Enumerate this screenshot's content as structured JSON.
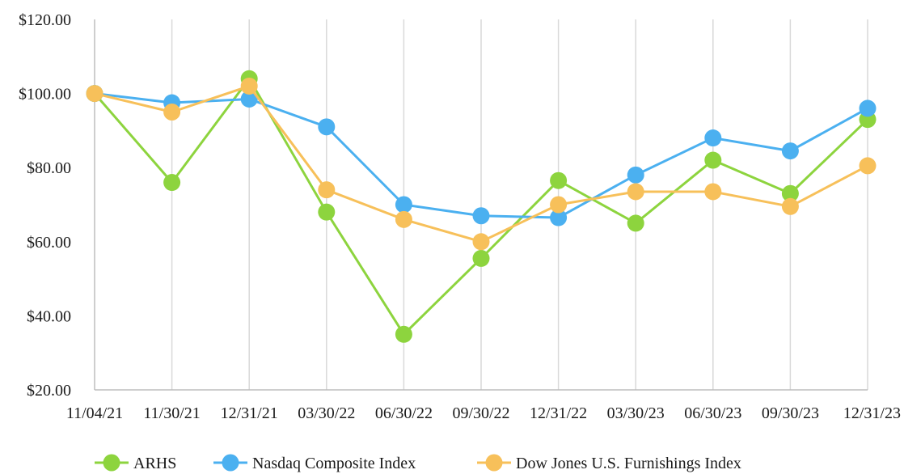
{
  "chart_data": {
    "type": "line",
    "title": "",
    "xlabel": "",
    "ylabel": "",
    "x": [
      "11/04/21",
      "11/30/21",
      "12/31/21",
      "03/30/22",
      "06/30/22",
      "09/30/22",
      "12/31/22",
      "03/30/23",
      "06/30/23",
      "09/30/23",
      "12/31/23"
    ],
    "ylim": [
      20,
      120
    ],
    "yticks": [
      20,
      40,
      60,
      80,
      100,
      120
    ],
    "ytick_labels": [
      "$20.00",
      "$40.00",
      "$60.00",
      "$80.00",
      "$100.00",
      "$120.00"
    ],
    "grid": "vertical",
    "legend": "bottom",
    "series": [
      {
        "name": "ARHS",
        "color": "#8dd43e",
        "values": [
          100,
          76,
          104,
          68,
          35,
          55.5,
          76.5,
          65,
          82,
          73,
          93
        ]
      },
      {
        "name": "Nasdaq Composite Index",
        "color": "#4bb0f0",
        "values": [
          100,
          97.5,
          98.5,
          91,
          70,
          67,
          66.5,
          78,
          88,
          84.5,
          96
        ]
      },
      {
        "name": "Dow Jones U.S. Furnishings Index",
        "color": "#f7c05a",
        "values": [
          100,
          95,
          102,
          74,
          66,
          60,
          70,
          73.5,
          73.5,
          69.5,
          80.5
        ]
      }
    ]
  }
}
